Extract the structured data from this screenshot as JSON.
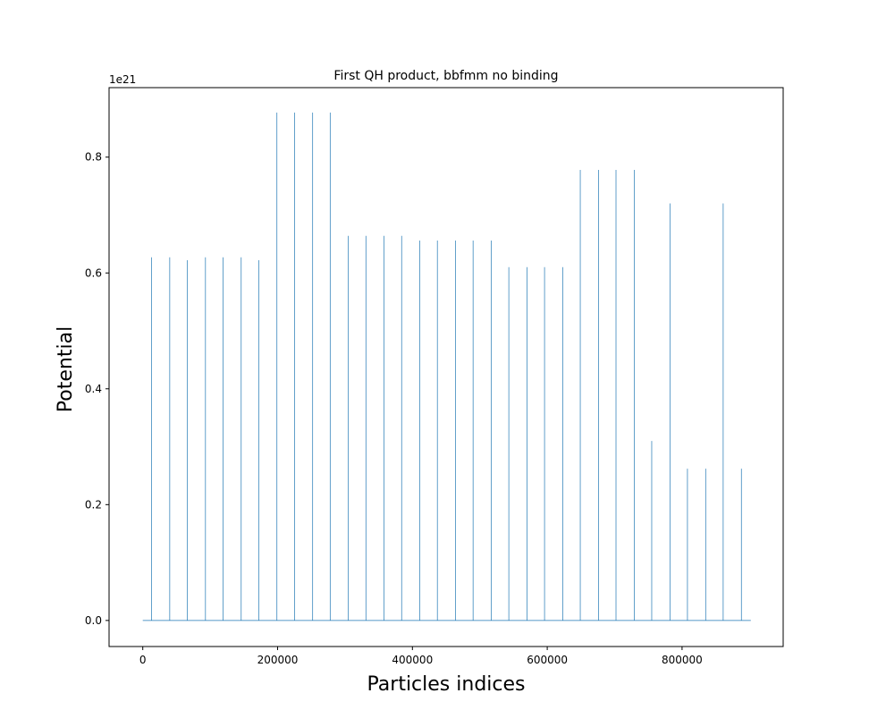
{
  "chart_data": {
    "type": "line",
    "title": "First QH product, bbfmm no binding",
    "xlabel": "Particles indices",
    "ylabel": "Potential",
    "y_offset_label": "1e21",
    "y_scale_exponent": 21,
    "xlim": [
      -50000,
      950000
    ],
    "ylim": [
      -0.045,
      0.92
    ],
    "xticks": [
      0,
      200000,
      400000,
      600000,
      800000
    ],
    "xtick_labels": [
      "0",
      "200000",
      "400000",
      "600000",
      "800000"
    ],
    "yticks": [
      0.0,
      0.2,
      0.4,
      0.6,
      0.8
    ],
    "ytick_labels": [
      "0.0",
      "0.2",
      "0.4",
      "0.6",
      "0.8"
    ],
    "grid": false,
    "series_color": "#1f77b4",
    "baseline": {
      "x_start": 0,
      "x_end": 902000,
      "y": 0.0
    },
    "series": [
      {
        "spikes": [
          {
            "x": 13000,
            "y": 0.627
          },
          {
            "x": 40000,
            "y": 0.627
          },
          {
            "x": 66000,
            "y": 0.622
          },
          {
            "x": 93000,
            "y": 0.627
          },
          {
            "x": 119000,
            "y": 0.627
          },
          {
            "x": 146000,
            "y": 0.627
          },
          {
            "x": 172000,
            "y": 0.622
          },
          {
            "x": 199000,
            "y": 0.877
          },
          {
            "x": 225000,
            "y": 0.877
          },
          {
            "x": 252000,
            "y": 0.877
          },
          {
            "x": 278000,
            "y": 0.877
          },
          {
            "x": 305000,
            "y": 0.664
          },
          {
            "x": 331000,
            "y": 0.664
          },
          {
            "x": 358000,
            "y": 0.664
          },
          {
            "x": 384000,
            "y": 0.664
          },
          {
            "x": 411000,
            "y": 0.656
          },
          {
            "x": 437000,
            "y": 0.656
          },
          {
            "x": 464000,
            "y": 0.656
          },
          {
            "x": 490000,
            "y": 0.656
          },
          {
            "x": 517000,
            "y": 0.656
          },
          {
            "x": 543000,
            "y": 0.61
          },
          {
            "x": 570000,
            "y": 0.61
          },
          {
            "x": 596000,
            "y": 0.61
          },
          {
            "x": 623000,
            "y": 0.61
          },
          {
            "x": 649000,
            "y": 0.778
          },
          {
            "x": 676000,
            "y": 0.778
          },
          {
            "x": 702000,
            "y": 0.778
          },
          {
            "x": 729000,
            "y": 0.778
          },
          {
            "x": 755000,
            "y": 0.31
          },
          {
            "x": 782000,
            "y": 0.72
          },
          {
            "x": 808000,
            "y": 0.262
          },
          {
            "x": 835000,
            "y": 0.262
          },
          {
            "x": 861000,
            "y": 0.72
          },
          {
            "x": 888000,
            "y": 0.262
          }
        ]
      }
    ]
  }
}
